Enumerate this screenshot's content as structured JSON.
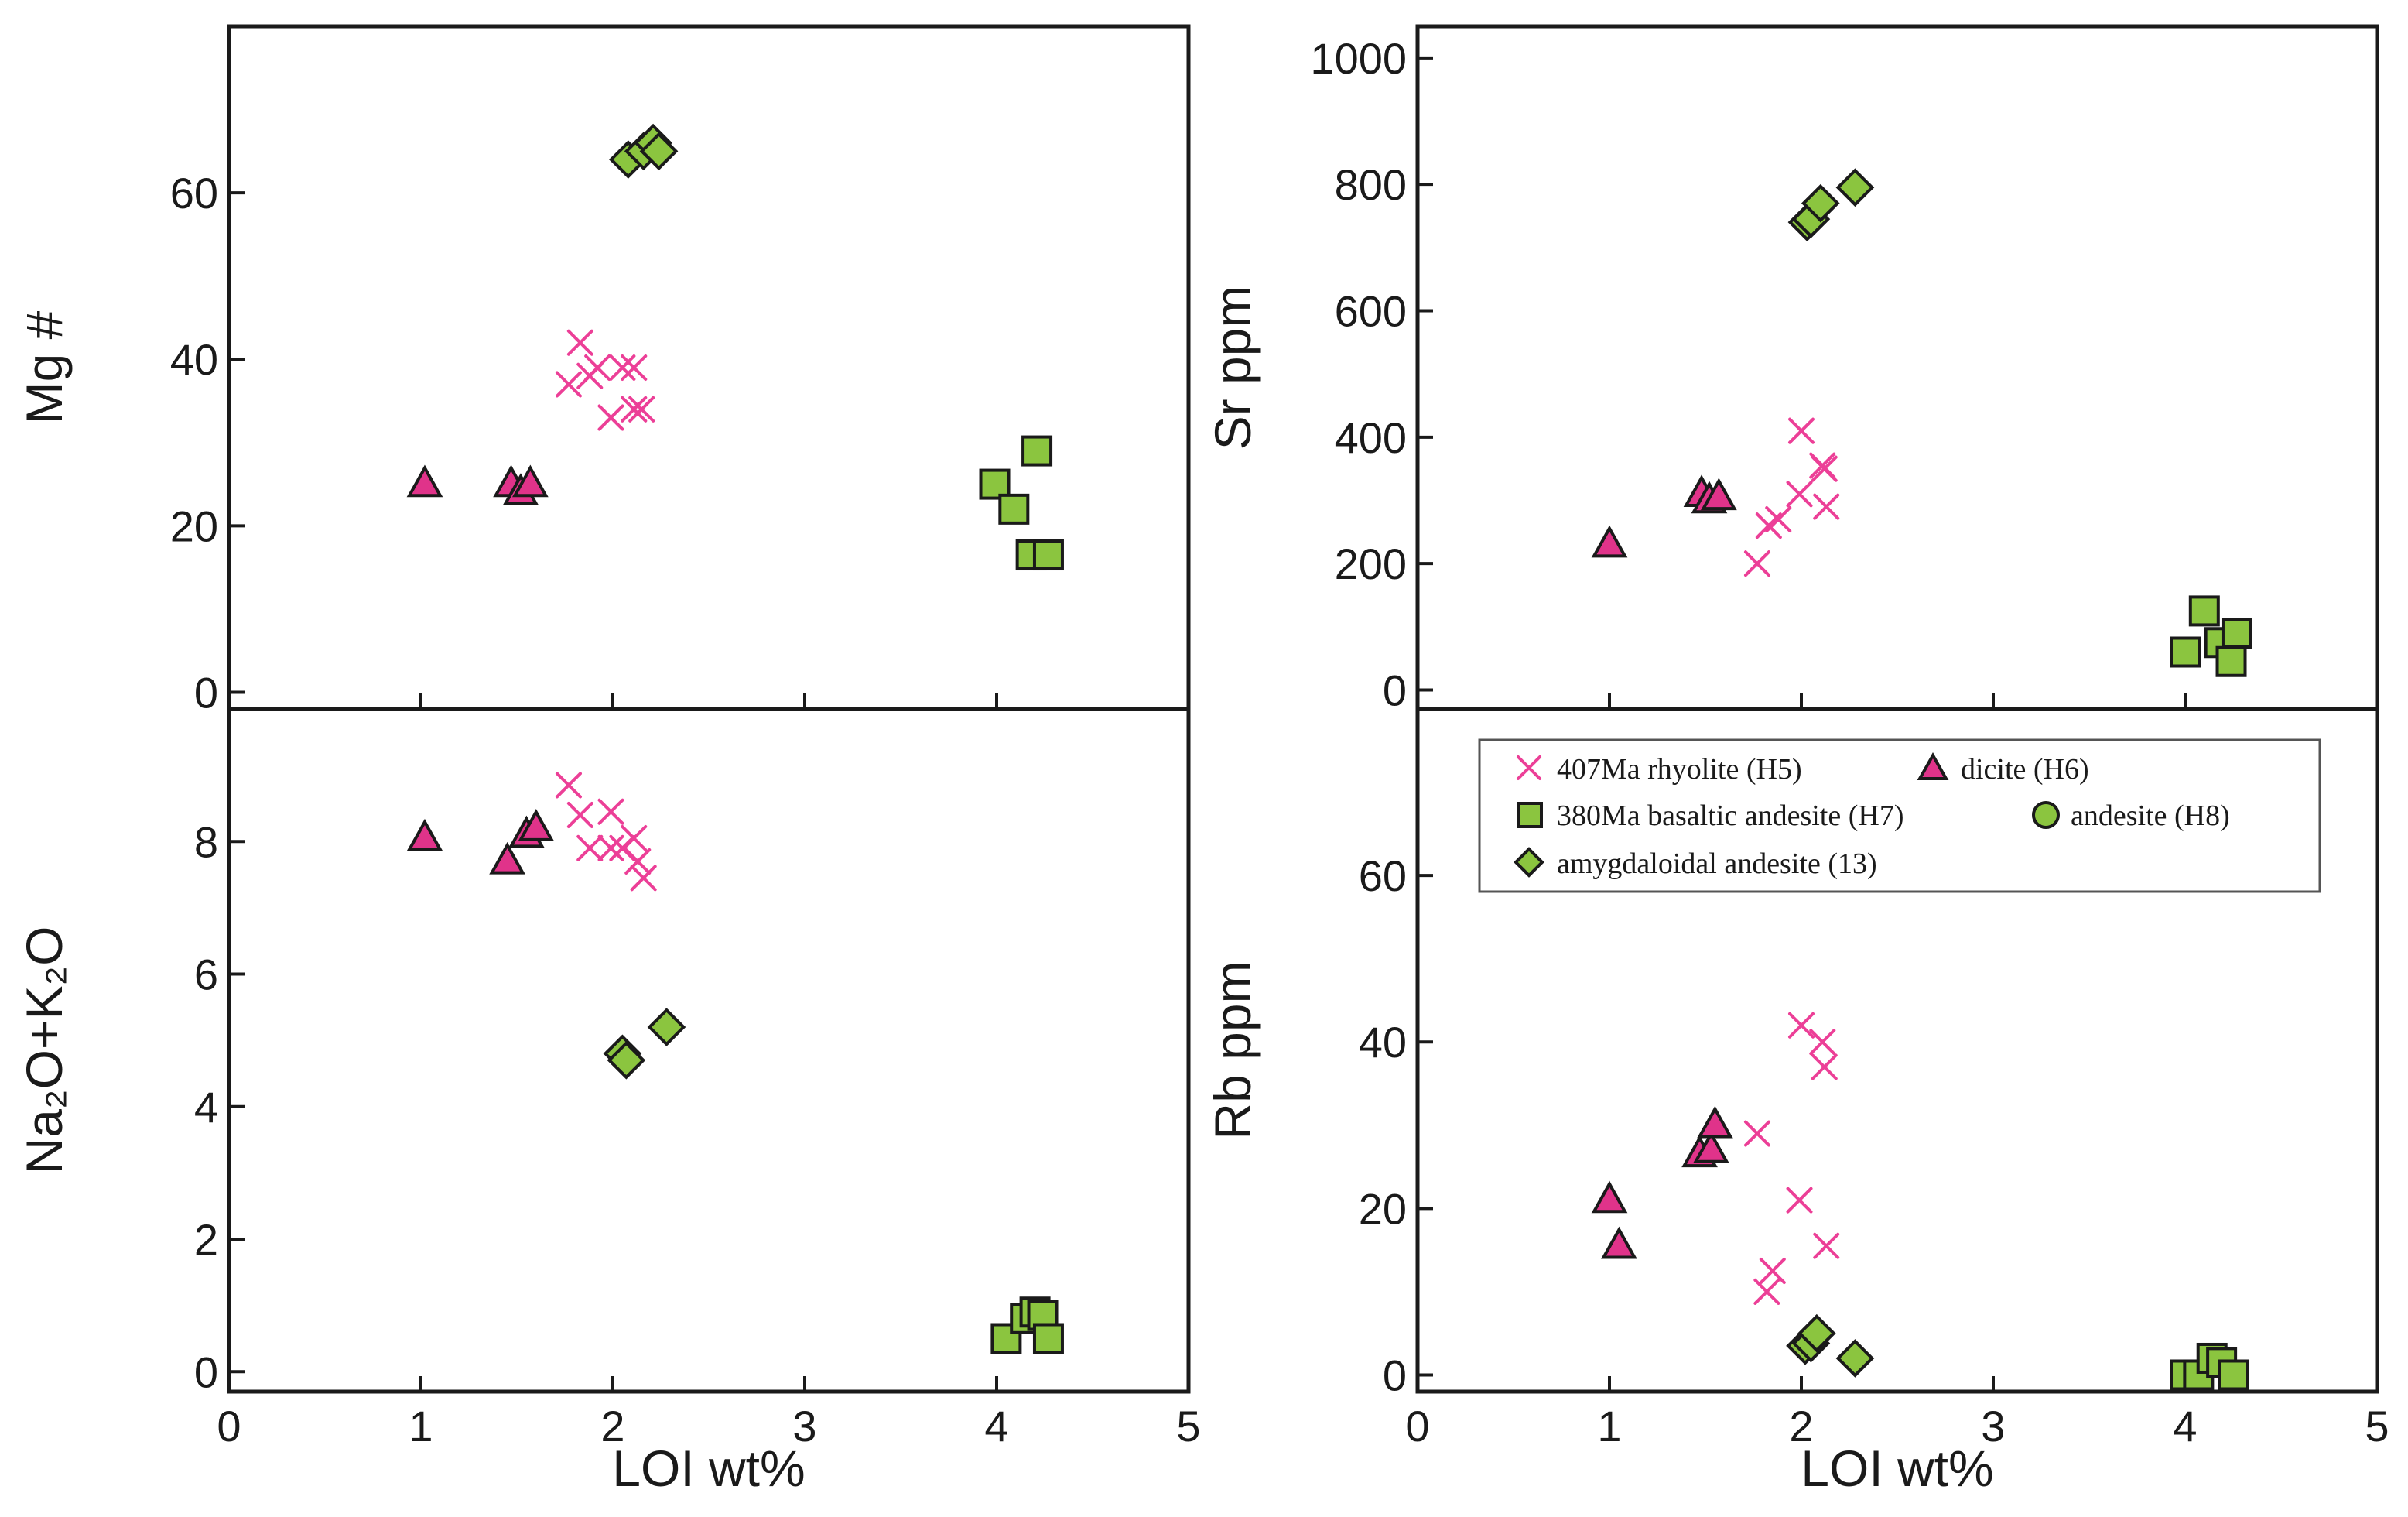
{
  "colors": {
    "rhyolite": "#ec3f97",
    "dacite": "#e0338a",
    "green": "#8bc53f",
    "outline": "#1a1a1a"
  },
  "legend": {
    "items": [
      {
        "marker": "x",
        "label": "407Ma rhyolite (H5)"
      },
      {
        "marker": "triangle",
        "label": "dicite (H6)"
      },
      {
        "marker": "square",
        "label": "380Ma basaltic andesite (H7)"
      },
      {
        "marker": "circle",
        "label": "andesite (H8)"
      },
      {
        "marker": "diamond",
        "label": "amygdaloidal andesite (13)"
      }
    ]
  },
  "chart_data": [
    {
      "id": "mg",
      "type": "scatter",
      "title": "",
      "xlabel": "",
      "ylabel": "Mg #",
      "xlim": [
        0,
        5
      ],
      "ylim": [
        -2,
        80
      ],
      "yticks": [
        0,
        20,
        40,
        60
      ],
      "xticks": [],
      "series": [
        {
          "name": "407Ma rhyolite (H5)",
          "marker": "x",
          "points": [
            [
              1.77,
              37
            ],
            [
              1.83,
              42
            ],
            [
              1.88,
              38
            ],
            [
              1.92,
              39
            ],
            [
              1.99,
              33
            ],
            [
              2.05,
              39
            ],
            [
              2.11,
              39
            ],
            [
              2.11,
              34
            ],
            [
              2.15,
              34
            ]
          ]
        },
        {
          "name": "dicite (H6)",
          "marker": "triangle",
          "points": [
            [
              1.02,
              25
            ],
            [
              1.47,
              25
            ],
            [
              1.52,
              24
            ],
            [
              1.57,
              25
            ]
          ]
        },
        {
          "name": "380Ma basaltic andesite (H7)",
          "marker": "square",
          "points": [
            [
              3.99,
              25
            ],
            [
              4.09,
              22
            ],
            [
              4.18,
              16.5
            ],
            [
              4.21,
              29
            ],
            [
              4.27,
              16.5
            ]
          ]
        },
        {
          "name": "amygdaloidal andesite (13)",
          "marker": "diamond",
          "points": [
            [
              2.08,
              64
            ],
            [
              2.16,
              65
            ],
            [
              2.21,
              66
            ],
            [
              2.24,
              65
            ]
          ]
        }
      ]
    },
    {
      "id": "sr",
      "type": "scatter",
      "title": "",
      "xlabel": "",
      "ylabel": "Sr ppm",
      "xlim": [
        0,
        5
      ],
      "ylim": [
        -30,
        1050
      ],
      "yticks": [
        0,
        200,
        400,
        600,
        800,
        1000
      ],
      "xticks": [],
      "series": [
        {
          "name": "407Ma rhyolite (H5)",
          "marker": "x",
          "points": [
            [
              1.77,
              200
            ],
            [
              1.83,
              260
            ],
            [
              1.88,
              270
            ],
            [
              1.99,
              310
            ],
            [
              2.0,
              410
            ],
            [
              2.11,
              355
            ],
            [
              2.12,
              350
            ],
            [
              2.13,
              290
            ]
          ]
        },
        {
          "name": "dicite (H6)",
          "marker": "triangle",
          "points": [
            [
              1.0,
              230
            ],
            [
              1.48,
              310
            ],
            [
              1.52,
              300
            ],
            [
              1.57,
              305
            ]
          ]
        },
        {
          "name": "380Ma basaltic andesite (H7)",
          "marker": "square",
          "points": [
            [
              4.0,
              60
            ],
            [
              4.1,
              125
            ],
            [
              4.18,
              75
            ],
            [
              4.24,
              45
            ],
            [
              4.27,
              90
            ]
          ]
        },
        {
          "name": "amygdaloidal andesite (13)",
          "marker": "diamond",
          "points": [
            [
              2.03,
              740
            ],
            [
              2.05,
              745
            ],
            [
              2.1,
              770
            ],
            [
              2.28,
              795
            ]
          ]
        }
      ]
    },
    {
      "id": "alk",
      "type": "scatter",
      "title": "",
      "xlabel": "LOI wt%",
      "ylabel": "Na₂O+K₂O",
      "xlim": [
        0,
        5
      ],
      "ylim": [
        -0.3,
        10
      ],
      "yticks": [
        0,
        2,
        4,
        6,
        8
      ],
      "xticks": [
        0,
        1,
        2,
        3,
        4,
        5
      ],
      "series": [
        {
          "name": "407Ma rhyolite (H5)",
          "marker": "x",
          "points": [
            [
              1.77,
              8.85
            ],
            [
              1.83,
              8.4
            ],
            [
              1.88,
              7.9
            ],
            [
              1.99,
              8.45
            ],
            [
              1.99,
              7.9
            ],
            [
              2.05,
              7.9
            ],
            [
              2.11,
              8.05
            ],
            [
              2.13,
              7.7
            ],
            [
              2.16,
              7.45
            ]
          ]
        },
        {
          "name": "dicite (H6)",
          "marker": "triangle",
          "points": [
            [
              1.02,
              8.05
            ],
            [
              1.45,
              7.7
            ],
            [
              1.55,
              8.1
            ],
            [
              1.6,
              8.2
            ]
          ]
        },
        {
          "name": "380Ma basaltic andesite (H7)",
          "marker": "square",
          "points": [
            [
              4.05,
              0.5
            ],
            [
              4.15,
              0.8
            ],
            [
              4.2,
              0.9
            ],
            [
              4.24,
              0.85
            ],
            [
              4.27,
              0.5
            ]
          ]
        },
        {
          "name": "amygdaloidal andesite (13)",
          "marker": "diamond",
          "points": [
            [
              2.05,
              4.8
            ],
            [
              2.07,
              4.7
            ],
            [
              2.28,
              5.2
            ]
          ]
        }
      ]
    },
    {
      "id": "rb",
      "type": "scatter",
      "title": "",
      "xlabel": "LOI wt%",
      "ylabel": "Rb ppm",
      "xlim": [
        0,
        5
      ],
      "ylim": [
        -2,
        80
      ],
      "yticks": [
        0,
        20,
        40,
        60
      ],
      "xticks": [
        0,
        1,
        2,
        3,
        4,
        5
      ],
      "series": [
        {
          "name": "407Ma rhyolite (H5)",
          "marker": "x",
          "points": [
            [
              1.77,
              29
            ],
            [
              1.82,
              10
            ],
            [
              1.85,
              12.5
            ],
            [
              1.99,
              21
            ],
            [
              2.0,
              42
            ],
            [
              2.11,
              40
            ],
            [
              2.12,
              37
            ],
            [
              2.13,
              15.5
            ]
          ]
        },
        {
          "name": "dicite (H6)",
          "marker": "triangle",
          "points": [
            [
              1.0,
              21
            ],
            [
              1.05,
              15.5
            ],
            [
              1.47,
              26.5
            ],
            [
              1.53,
              27
            ],
            [
              1.55,
              30
            ]
          ]
        },
        {
          "name": "380Ma basaltic andesite (H7)",
          "marker": "square",
          "points": [
            [
              4.0,
              0
            ],
            [
              4.07,
              0
            ],
            [
              4.14,
              2
            ],
            [
              4.19,
              1.5
            ],
            [
              4.25,
              0
            ]
          ]
        },
        {
          "name": "amygdaloidal andesite (13)",
          "marker": "diamond",
          "points": [
            [
              2.02,
              3.5
            ],
            [
              2.05,
              3.8
            ],
            [
              2.08,
              5
            ],
            [
              2.28,
              2
            ]
          ]
        }
      ]
    }
  ]
}
